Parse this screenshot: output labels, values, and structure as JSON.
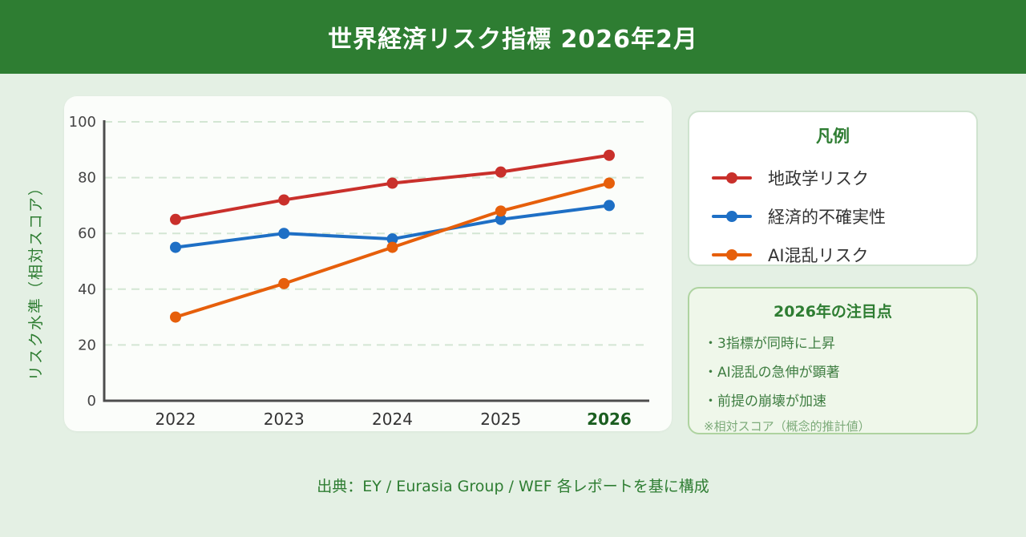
{
  "header": {
    "title": "世界経済リスク指標 2026年2月"
  },
  "chart_data": {
    "type": "line",
    "categories": [
      "2022",
      "2023",
      "2024",
      "2025",
      "2026"
    ],
    "series": [
      {
        "name": "地政学リスク",
        "color": "#c9302b",
        "values": [
          65,
          72,
          78,
          82,
          88
        ]
      },
      {
        "name": "経済的不確実性",
        "color": "#1e6fc5",
        "values": [
          55,
          60,
          58,
          65,
          70
        ]
      },
      {
        "name": "AI混乱リスク",
        "color": "#e65f0b",
        "values": [
          30,
          42,
          55,
          68,
          78
        ]
      }
    ],
    "title": "世界経済リスク指標 2026年2月",
    "xlabel": "",
    "ylabel": "リスク水準（相対スコア）",
    "ylim": [
      0,
      100
    ],
    "yticks": [
      0,
      20,
      40,
      60,
      80,
      100
    ],
    "grid": "dashed-horizontal",
    "highlight_category": "2026",
    "legend_position": "right-box"
  },
  "legend": {
    "title": "凡例"
  },
  "notes": {
    "title": "2026年の注目点",
    "bullets": [
      "・3指標が同時に上昇",
      "・AI混乱の急伸が顕著",
      "・前提の崩壊が加速"
    ],
    "footnote": "※相対スコア（概念的推計値）"
  },
  "source": {
    "text": "出典：EY / Eurasia Group / WEF 各レポートを基に構成"
  },
  "colors": {
    "header_bg": "#2e7d32",
    "page_bg": "#e4f0e4",
    "card_bg": "#fbfdfa",
    "grid": "#d3e6d3",
    "axis": "#4d4d4d",
    "tick_text": "#444444",
    "x_label_text": "#333333",
    "highlight_text": "#1b5e20"
  }
}
